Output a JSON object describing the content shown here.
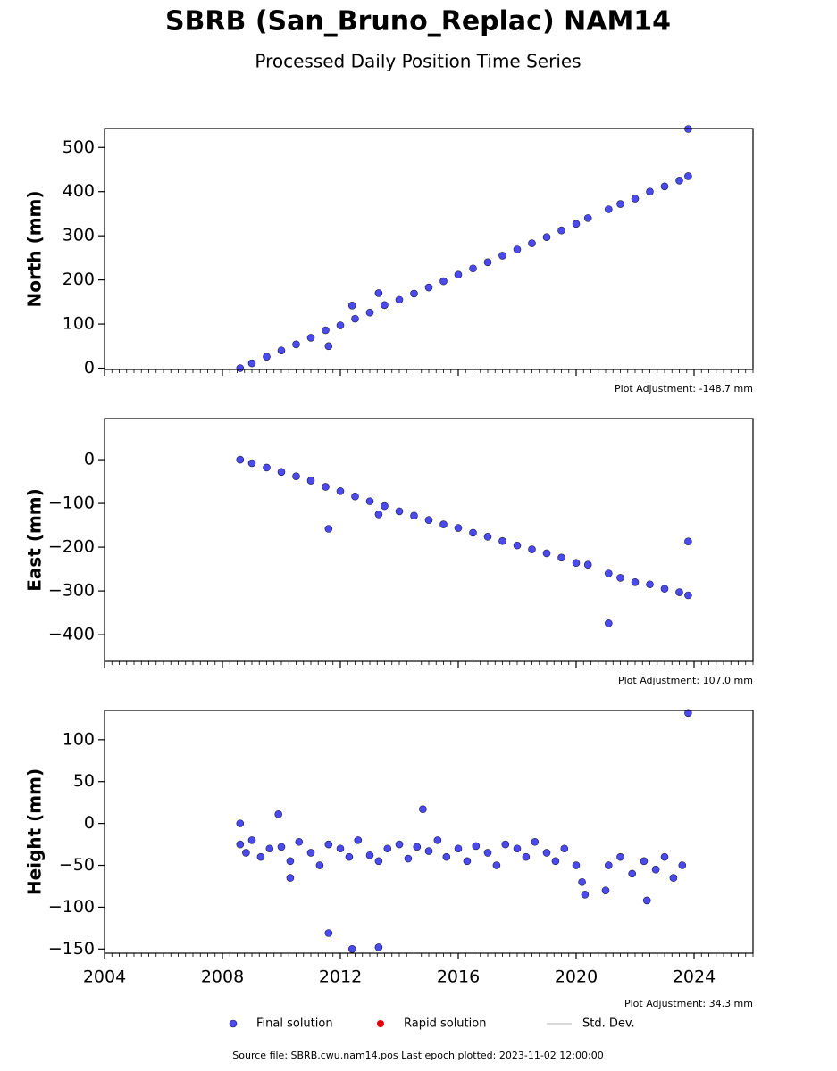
{
  "title": "SBRB (San_Bruno_Replac) NAM14",
  "subtitle": "Processed Daily Position Time Series",
  "chart_data": [
    {
      "type": "scatter",
      "ylabel": "North (mm)",
      "color": "#4a4af0",
      "annotation": "Plot Adjustment: -148.7 mm",
      "xlim": [
        2004,
        2026
      ],
      "ylim": [
        -3,
        543
      ],
      "yticks": [
        0,
        100,
        200,
        300,
        400,
        500
      ],
      "x": [
        2008.6,
        2009.0,
        2009.5,
        2010.0,
        2010.5,
        2011.0,
        2011.5,
        2012.0,
        2012.5,
        2013.0,
        2013.5,
        2014.0,
        2014.5,
        2015.0,
        2015.5,
        2016.0,
        2016.5,
        2017.0,
        2017.5,
        2018.0,
        2018.5,
        2019.0,
        2019.5,
        2020.0,
        2020.4,
        2021.1,
        2021.5,
        2022.0,
        2022.5,
        2023.0,
        2023.5,
        2023.8,
        2011.6,
        2012.4,
        2013.3,
        2023.8
      ],
      "values": [
        0,
        11,
        26,
        40,
        54,
        69,
        86,
        97,
        112,
        126,
        143,
        155,
        169,
        183,
        197,
        212,
        226,
        240,
        255,
        269,
        283,
        297,
        312,
        327,
        340,
        360,
        372,
        384,
        400,
        412,
        425,
        435,
        50,
        142,
        170,
        542
      ]
    },
    {
      "type": "scatter",
      "ylabel": "East (mm)",
      "color": "#4a4af0",
      "annotation": "Plot Adjustment: 107.0 mm",
      "xlim": [
        2004,
        2026
      ],
      "ylim": [
        -461,
        94
      ],
      "yticks": [
        0,
        {
          "value": -100,
          "label": "−100"
        },
        {
          "value": -200,
          "label": "−200"
        },
        {
          "value": -300,
          "label": "−300"
        },
        {
          "value": -400,
          "label": "−400"
        }
      ],
      "x": [
        2008.6,
        2009.0,
        2009.5,
        2010.0,
        2010.5,
        2011.0,
        2011.5,
        2012.0,
        2012.5,
        2013.0,
        2013.5,
        2014.0,
        2014.5,
        2015.0,
        2015.5,
        2016.0,
        2016.5,
        2017.0,
        2017.5,
        2018.0,
        2018.5,
        2019.0,
        2019.5,
        2020.0,
        2020.4,
        2021.1,
        2021.5,
        2022.0,
        2022.5,
        2023.0,
        2023.5,
        2023.8,
        2011.6,
        2013.3,
        2021.1,
        2023.8
      ],
      "values": [
        0,
        -8,
        -18,
        -28,
        -38,
        -48,
        -62,
        -72,
        -84,
        -95,
        -106,
        -118,
        -128,
        -138,
        -148,
        -156,
        -167,
        -176,
        -186,
        -196,
        -205,
        -214,
        -224,
        -236,
        -240,
        -260,
        -270,
        -280,
        -285,
        -295,
        -303,
        -310,
        -158,
        -125,
        -374,
        -187
      ]
    },
    {
      "type": "scatter",
      "ylabel": "Height (mm)",
      "color": "#4a4af0",
      "annotation": "Plot Adjustment: 34.3 mm",
      "xlim": [
        2004,
        2026
      ],
      "ylim": [
        -155,
        135
      ],
      "yticks": [
        100,
        50,
        0,
        {
          "value": -50,
          "label": "−50"
        },
        {
          "value": -100,
          "label": "−100"
        },
        {
          "value": -150,
          "label": "−150"
        }
      ],
      "xticks": [
        2004,
        2008,
        2012,
        2016,
        2020,
        2024
      ],
      "x": [
        2008.6,
        2008.8,
        2009.0,
        2009.3,
        2009.6,
        2010.0,
        2010.3,
        2010.6,
        2011.0,
        2011.3,
        2011.6,
        2012.0,
        2012.3,
        2012.6,
        2013.0,
        2013.3,
        2013.6,
        2014.0,
        2014.3,
        2014.6,
        2015.0,
        2015.3,
        2015.6,
        2016.0,
        2016.3,
        2016.6,
        2017.0,
        2017.3,
        2017.6,
        2018.0,
        2018.3,
        2018.6,
        2019.0,
        2019.3,
        2019.6,
        2020.0,
        2020.2,
        2021.1,
        2021.5,
        2021.9,
        2022.3,
        2022.7,
        2023.0,
        2023.3,
        2023.6,
        2008.6,
        2009.9,
        2011.6,
        2012.4,
        2013.3,
        2014.8,
        2020.3,
        2023.8,
        2021.0,
        2022.4,
        2010.3
      ],
      "values": [
        -25,
        -35,
        -20,
        -40,
        -30,
        -28,
        -45,
        -22,
        -35,
        -50,
        -25,
        -30,
        -40,
        -20,
        -38,
        -45,
        -30,
        -25,
        -42,
        -28,
        -33,
        -20,
        -40,
        -30,
        -45,
        -27,
        -35,
        -50,
        -25,
        -30,
        -40,
        -22,
        -35,
        -45,
        -30,
        -50,
        -70,
        -50,
        -40,
        -60,
        -45,
        -55,
        -40,
        -65,
        -50,
        0,
        11,
        -131,
        -150,
        -148,
        17,
        -85,
        132,
        -80,
        -92,
        -65
      ]
    }
  ],
  "legend": [
    {
      "name": "Final solution",
      "color": "#4a4af0"
    },
    {
      "name": "Rapid solution",
      "color": "#e00000"
    },
    {
      "name": "Std. Dev.",
      "color": "#cccccc"
    }
  ],
  "footer": "Source file: SBRB.cwu.nam14.pos  Last epoch plotted: 2023-11-02 12:00:00"
}
